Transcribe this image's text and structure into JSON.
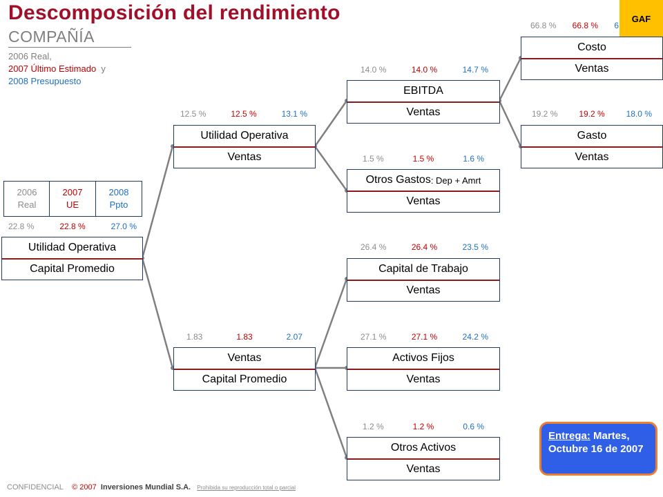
{
  "title": "Descomposición  del  rendimiento",
  "subtitle": "COMPAÑÍA",
  "legend": {
    "line1": "2006 Real,",
    "line2": "2007 Último Estimado",
    "line2_suffix": "y",
    "line3": "2008 Presupuesto"
  },
  "badge": "GAF",
  "column_headers": [
    {
      "year": "2006",
      "label": "Real"
    },
    {
      "year": "2007",
      "label": "UE"
    },
    {
      "year": "2008",
      "label": "Ppto"
    }
  ],
  "nodes": {
    "roc": {
      "top": "Utilidad Operativa",
      "bottom": "Capital Promedio",
      "v": [
        "22.8 %",
        "22.8 %",
        "27.0 %"
      ]
    },
    "margin": {
      "top": "Utilidad Operativa",
      "bottom": "Ventas",
      "v": [
        "12.5 %",
        "12.5 %",
        "13.1 %"
      ]
    },
    "turnover": {
      "top": "Ventas",
      "bottom": "Capital Promedio",
      "v": [
        "1.83",
        "1.83",
        "2.07"
      ]
    },
    "ebitda": {
      "top": "EBITDA",
      "bottom": "Ventas",
      "v": [
        "14.0 %",
        "14.0 %",
        "14.7 %"
      ]
    },
    "otros_gastos": {
      "top_main": "Otros Gastos",
      "top_small": ": Dep + Amrt",
      "bottom": "Ventas",
      "v": [
        "1.5 %",
        "1.5 %",
        "1.6 %"
      ]
    },
    "costo": {
      "top": "Costo",
      "bottom": "Ventas",
      "v": [
        "66.8 %",
        "66.8 %",
        "6"
      ]
    },
    "gasto": {
      "top": "Gasto",
      "bottom": "Ventas",
      "v": [
        "19.2 %",
        "19.2 %",
        "18.0 %"
      ]
    },
    "capital_trabajo": {
      "top": "Capital de Trabajo",
      "bottom": "Ventas",
      "v": [
        "26.4 %",
        "26.4 %",
        "23.5 %"
      ]
    },
    "activos_fijos": {
      "top": "Activos Fijos",
      "bottom": "Ventas",
      "v": [
        "27.1 %",
        "27.1 %",
        "24.2 %"
      ]
    },
    "otros_activos": {
      "top": "Otros Activos",
      "bottom": "Ventas",
      "v": [
        "1.2 %",
        "1.2 %",
        "0.6 %"
      ]
    }
  },
  "delivery": {
    "label": "Entrega:",
    "text": " Martes, Octubre 16 de 2007"
  },
  "footer": {
    "confidential": "CONFIDENCIAL",
    "copyright": "© 2007",
    "company": "Inversiones Mundial S.A.",
    "notice": "Prohibida su reproducción total o parcial"
  },
  "colors": {
    "title": "#a0102a",
    "real": "#8c8c8c",
    "estimate": "#c00000",
    "budget": "#1f6fbf",
    "badge": "#ffc000",
    "callout_fill": "#2f5fe6",
    "callout_border": "#ed7d31"
  }
}
